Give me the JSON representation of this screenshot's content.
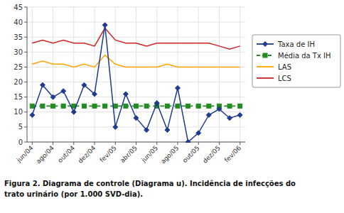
{
  "chart_data": {
    "type": "line",
    "categories": [
      "jun/04",
      null,
      "ago/04",
      null,
      "out/04",
      null,
      "dez/04",
      null,
      "fev/05",
      null,
      "abr/05",
      null,
      "jun/05",
      null,
      "ago/05",
      null,
      "out/05",
      null,
      "dez/05",
      null,
      "fev/06"
    ],
    "series": [
      {
        "name": "Taxa de IH",
        "color": "#1F3A8F",
        "marker": "diamond",
        "line_style": "solid",
        "values": [
          9,
          19,
          15,
          17,
          10,
          19,
          16,
          39,
          5,
          16,
          8,
          4,
          13,
          4,
          18,
          0,
          3,
          9,
          11,
          8,
          9
        ]
      },
      {
        "name": "Média da Tx IH",
        "color": "#228B22",
        "marker": "square",
        "line_style": "dashed",
        "values": [
          12,
          12,
          12,
          12,
          12,
          12,
          12,
          12,
          12,
          12,
          12,
          12,
          12,
          12,
          12,
          12,
          12,
          12,
          12,
          12,
          12
        ]
      },
      {
        "name": "LAS",
        "color": "#FFA500",
        "marker": "none",
        "line_style": "solid",
        "values": [
          26,
          27,
          26,
          26,
          25,
          26,
          25,
          29,
          26,
          25,
          25,
          25,
          25,
          26,
          25,
          25,
          25,
          25,
          25,
          25,
          25
        ]
      },
      {
        "name": "LCS",
        "color": "#CC2222",
        "marker": "none",
        "line_style": "solid",
        "values": [
          33,
          34,
          33,
          34,
          33,
          33,
          32,
          38,
          34,
          33,
          33,
          32,
          33,
          33,
          33,
          33,
          33,
          33,
          32,
          31,
          32
        ]
      }
    ],
    "ylim": [
      0,
      45
    ],
    "yticks": [
      0,
      5,
      10,
      15,
      20,
      25,
      30,
      35,
      40,
      45
    ],
    "grid": true,
    "legend": "right",
    "annotations": [
      "Figura 2. Diagrama de controle (Diagrama u). Incidência de infecções do",
      "trato urinário (por 1.000 SVD-dia)."
    ]
  }
}
